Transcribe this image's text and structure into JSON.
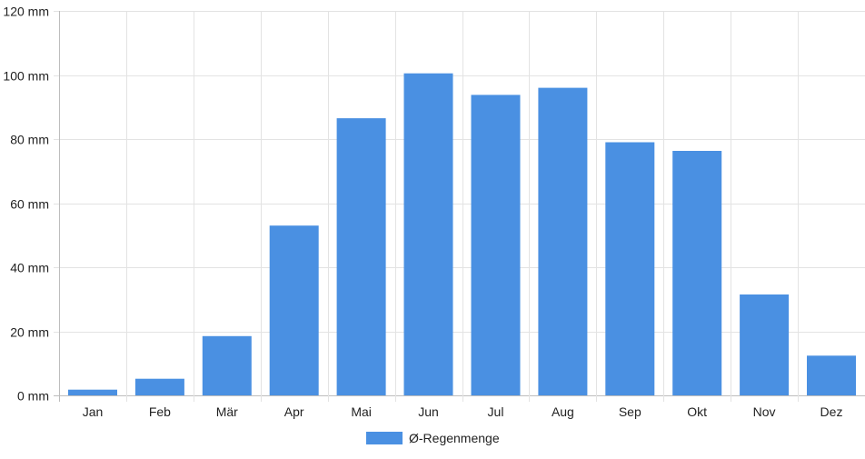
{
  "chart_data": {
    "type": "bar",
    "categories": [
      "Jan",
      "Feb",
      "Mär",
      "Apr",
      "Mai",
      "Jun",
      "Jul",
      "Aug",
      "Sep",
      "Okt",
      "Nov",
      "Dez"
    ],
    "series": [
      {
        "name": "Ø-Regenmenge",
        "values": [
          1.8,
          5.2,
          18.5,
          53.0,
          86.5,
          100.5,
          93.8,
          96.0,
          79.0,
          76.3,
          31.5,
          12.4
        ],
        "color": "#4a90e2"
      }
    ],
    "y_ticks": [
      "0 mm",
      "20 mm",
      "40 mm",
      "60 mm",
      "80 mm",
      "100 mm",
      "120 mm"
    ],
    "ylim": [
      0,
      120
    ],
    "y_step": 20,
    "grid": true,
    "legend_position": "bottom-center"
  }
}
